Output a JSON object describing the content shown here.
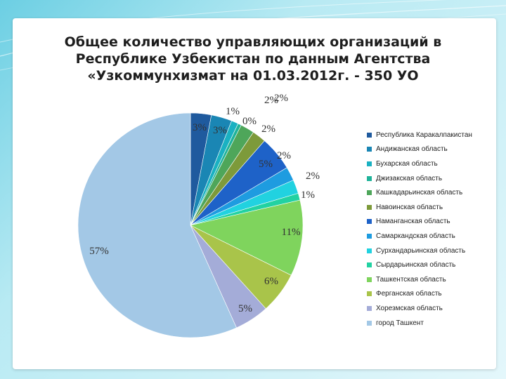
{
  "title": {
    "line1": "Общее количество управляющих организаций в",
    "line2": "Республике  Узбекистан по данным Агентства",
    "line3": "«Узкоммунхизмат на 01.03.2012г.  - 350 УО"
  },
  "chart_data": {
    "type": "pie",
    "legend_position": "right",
    "slices": [
      {
        "name": "Республика Каракалпакистан",
        "value": 3,
        "label": "3%",
        "color": "#1f5a9e"
      },
      {
        "name": "Андижанская область",
        "value": 3,
        "label": "3%",
        "color": "#1a86b4"
      },
      {
        "name": "Бухарская область",
        "value": 1,
        "label": "1%",
        "color": "#1ab1c2"
      },
      {
        "name": "Джизакская область",
        "value": 0.5,
        "label": "0%",
        "color": "#1fb39a"
      },
      {
        "name": "Кашкадарьинская область",
        "value": 2,
        "label": "2%",
        "color": "#4ea65a"
      },
      {
        "name": "Навоинская область",
        "value": 2,
        "label": "2%",
        "color": "#7d9a3a"
      },
      {
        "name": "Наманганская область",
        "value": 5,
        "label": "5%",
        "color": "#1e62c8"
      },
      {
        "name": "Самаркандская область",
        "value": 2,
        "label": "2%",
        "color": "#1e9ce0"
      },
      {
        "name": "Сурхандарьинская область",
        "value": 2,
        "label": "2%",
        "color": "#21d2e0"
      },
      {
        "name": "Сырдарьинская область",
        "value": 1,
        "label": "1%",
        "color": "#22d2a2"
      },
      {
        "name": "Ташкентская область",
        "value": 11,
        "label": "11%",
        "color": "#7fd45d"
      },
      {
        "name": "Ферганская область",
        "value": 6,
        "label": "6%",
        "color": "#a9c44a"
      },
      {
        "name": "Хорезмская область",
        "value": 5,
        "label": "5%",
        "color": "#a4acd8"
      },
      {
        "name": "город Ташкент",
        "value": 57,
        "label": "57%",
        "color": "#a3c8e6"
      }
    ],
    "extra_label": "2%"
  },
  "legend_items": [
    "Республика Каракалпакистан",
    "Андижанская область",
    "Бухарская область",
    "Джизакская область",
    "Кашкадарьинская область",
    "Навоинская область",
    "Наманганская область",
    "Самаркандская область",
    "Сурхандарьинская область",
    "Сырдарьинская область",
    "Ташкентская область",
    "Ферганская область",
    "Хорезмская область",
    "город Ташкент"
  ]
}
